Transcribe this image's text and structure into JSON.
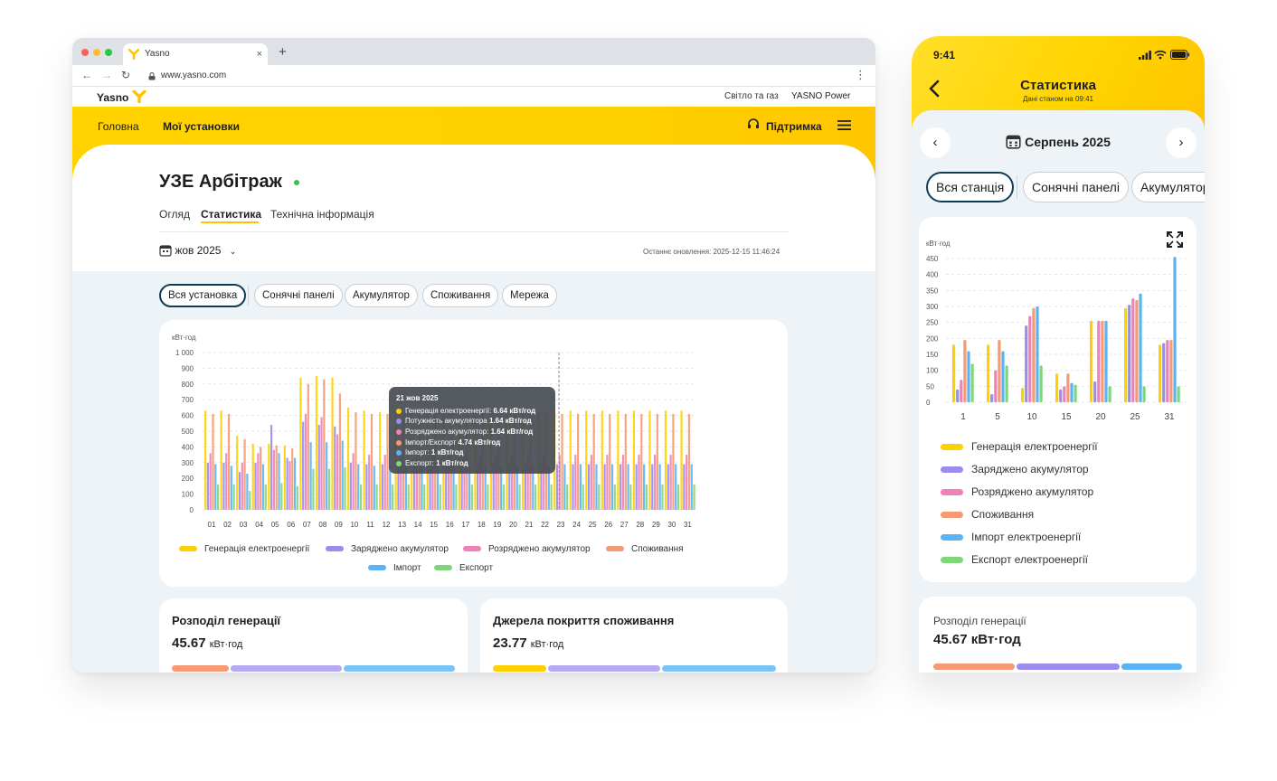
{
  "colors": {
    "brand_yellow": "#ffd200",
    "dark_navy": "#0f3d56",
    "status_green": "#3dbb4a",
    "generation": "#ffd000",
    "charged": "#9b8cf0",
    "discharged": "#f27fb8",
    "consumption": "#f59a72",
    "import": "#5ab3f5",
    "export": "#7fd67a"
  },
  "browser": {
    "tab_title": "Yasno",
    "new_tab": "+",
    "tab_close": "×",
    "url": "www.yasno.com"
  },
  "site": {
    "logo_text": "Yasno",
    "top_links": [
      "Світло та газ",
      "YASNO Power"
    ],
    "nav": [
      "Головна",
      "Мої установки"
    ],
    "support": "Підтримка"
  },
  "page": {
    "title": "УЗЕ Арбітраж",
    "tabs": [
      "Огляд",
      "Статистика",
      "Технічна інформація"
    ],
    "active_tab": "Статистика",
    "month": "жов 2025",
    "last_update": "Останнє оновлення: 2025-12-15 11:46:24",
    "filters": [
      "Вся установка",
      "Сонячні панелі",
      "Акумулятор",
      "Споживання",
      "Мережа"
    ],
    "active_filter": "Вся установка"
  },
  "desktop_chart": {
    "unit": "кВт·год",
    "y_ticks": [
      "0",
      "100",
      "200",
      "300",
      "400",
      "500",
      "600",
      "700",
      "800",
      "900",
      "1 000"
    ],
    "legend": [
      "Генерація електроенергії",
      "Заряджено акумулятор",
      "Розряджено акумулятор",
      "Споживання",
      "Імпорт",
      "Експорт"
    ],
    "tooltip": {
      "date": "21 жов 2025",
      "rows": [
        {
          "label": "Генерація електроенергії:",
          "value": "6.64 кВт/год"
        },
        {
          "label": "Потужність акумулятора",
          "value": "1.64 кВт/год"
        },
        {
          "label": "Розряджено акумулятор:",
          "value": "1.64 кВт/год"
        },
        {
          "label": "Імпорт/Експорт",
          "value": "4.74 кВт/год"
        },
        {
          "label": "Імпорт:",
          "value": "1 кВт/год"
        },
        {
          "label": "Експорт:",
          "value": "1 кВт/год"
        }
      ]
    }
  },
  "chart_data": [
    {
      "type": "bar",
      "ylabel": "кВт·год",
      "ylim": [
        0,
        1000
      ],
      "grid": true,
      "legend": "bottom",
      "categories": [
        "01",
        "02",
        "03",
        "04",
        "05",
        "06",
        "07",
        "08",
        "09",
        "10",
        "11",
        "12",
        "13",
        "14",
        "15",
        "16",
        "17",
        "18",
        "19",
        "20",
        "21",
        "22",
        "23",
        "24",
        "25",
        "26",
        "27",
        "28",
        "29",
        "30",
        "31"
      ],
      "series": [
        {
          "name": "Генерація електроенергії",
          "values": [
            630,
            630,
            470,
            420,
            420,
            410,
            840,
            850,
            840,
            650,
            630,
            620,
            620,
            620,
            620,
            620,
            620,
            620,
            620,
            620,
            620,
            620,
            620,
            630,
            630,
            630,
            630,
            630,
            630,
            630,
            630
          ]
        },
        {
          "name": "Заряджено акумулятор",
          "values": [
            300,
            300,
            240,
            300,
            540,
            330,
            560,
            540,
            530,
            300,
            290,
            290,
            290,
            290,
            290,
            290,
            290,
            290,
            290,
            290,
            290,
            290,
            290,
            290,
            290,
            290,
            290,
            290,
            290,
            290,
            290
          ]
        },
        {
          "name": "Розряджено акумулятор",
          "values": [
            360,
            360,
            300,
            360,
            380,
            310,
            610,
            590,
            480,
            360,
            350,
            350,
            350,
            350,
            350,
            350,
            350,
            350,
            350,
            350,
            350,
            350,
            350,
            350,
            350,
            350,
            350,
            350,
            350,
            350,
            350
          ]
        },
        {
          "name": "Споживання",
          "values": [
            610,
            610,
            450,
            400,
            410,
            390,
            800,
            830,
            740,
            620,
            610,
            610,
            610,
            610,
            610,
            610,
            610,
            610,
            610,
            610,
            610,
            610,
            610,
            610,
            610,
            610,
            610,
            610,
            610,
            610,
            610
          ]
        },
        {
          "name": "Імпорт",
          "values": [
            290,
            280,
            230,
            290,
            360,
            330,
            430,
            430,
            440,
            290,
            280,
            280,
            280,
            280,
            280,
            280,
            280,
            280,
            280,
            280,
            280,
            280,
            290,
            290,
            290,
            290,
            290,
            290,
            290,
            290,
            290
          ]
        },
        {
          "name": "Експорт",
          "values": [
            160,
            160,
            120,
            160,
            170,
            150,
            260,
            260,
            270,
            160,
            160,
            160,
            160,
            160,
            160,
            160,
            160,
            160,
            160,
            160,
            160,
            160,
            160,
            160,
            160,
            160,
            160,
            160,
            160,
            160,
            160
          ]
        }
      ]
    },
    {
      "type": "bar",
      "ylabel": "кВт·год",
      "ylim": [
        0,
        450
      ],
      "grid": true,
      "legend": "bottom",
      "categories": [
        "1",
        "5",
        "10",
        "15",
        "20",
        "25",
        "31"
      ],
      "series": [
        {
          "name": "Генерація електроенергії",
          "values": [
            180,
            180,
            45,
            90,
            255,
            295,
            180
          ]
        },
        {
          "name": "Заряджено акумулятор",
          "values": [
            40,
            25,
            240,
            40,
            65,
            305,
            185
          ]
        },
        {
          "name": "Розряджено акумулятор",
          "values": [
            70,
            100,
            270,
            50,
            255,
            325,
            195
          ]
        },
        {
          "name": "Споживання",
          "values": [
            195,
            195,
            295,
            90,
            255,
            320,
            195
          ]
        },
        {
          "name": "Імпорт",
          "values": [
            160,
            160,
            300,
            60,
            255,
            340,
            455
          ]
        },
        {
          "name": "Експорт",
          "values": [
            120,
            115,
            115,
            55,
            50,
            50,
            50
          ]
        }
      ]
    }
  ],
  "summary_cards": [
    {
      "title": "Розподіл генерації",
      "value": "45.67",
      "unit": "кВт·год"
    },
    {
      "title": "Джерела покриття споживання",
      "value": "23.77",
      "unit": "кВт·год"
    }
  ],
  "phone": {
    "time": "9:41",
    "title": "Статистика",
    "subtitle": "Дані станом на 09:41",
    "month": "Серпень 2025",
    "filters": [
      "Вся станція",
      "Сонячні панелі",
      "Акумулятор"
    ],
    "active_filter": "Вся станція",
    "unit": "кВт·год",
    "y_ticks": [
      "0",
      "50",
      "100",
      "150",
      "200",
      "250",
      "300",
      "350",
      "400",
      "450"
    ],
    "x_ticks": [
      "1",
      "5",
      "10",
      "15",
      "20",
      "25",
      "31"
    ],
    "legend": [
      "Генерація електроенергії",
      "Заряджено акумулятор",
      "Розряджено акумулятор",
      "Споживання",
      "Імпорт електроенергії",
      "Експорт електроенергії"
    ],
    "summary_title": "Розподіл генерації",
    "summary_value": "45.67 кВт·год"
  }
}
